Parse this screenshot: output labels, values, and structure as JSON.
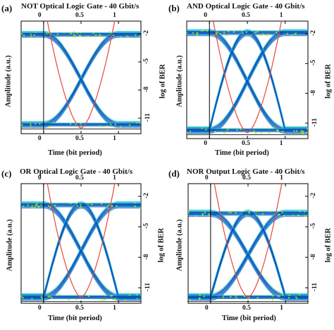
{
  "chart_data": [
    {
      "type": "line",
      "label": "(a)",
      "title": "NOT Optical Logic Gate - 40 Gbit/s",
      "xlabel": "Time (bit period)",
      "ylabel": "Amplitude (a.u.)",
      "y2label": "log of BER",
      "x_ticks": [
        "0",
        "0.5",
        "1"
      ],
      "y2_ticks": [
        "-2",
        "-5",
        "-8",
        "-11"
      ],
      "xlim": [
        -0.3,
        1.3
      ],
      "eye": {
        "high": 0.88,
        "low": 0.08,
        "cross": 0.4
      },
      "colors": {
        "trace": "#0b3fb8",
        "noise": "#22c7d0",
        "hot": "#b8f000",
        "ber": "#e8463c"
      }
    },
    {
      "type": "line",
      "label": "(b)",
      "title": "AND Optical Logic Gate - 40 Gbit/s",
      "xlabel": "Time (bit period)",
      "ylabel": "Amplitude (a.u.)",
      "y2label": "log of BER",
      "x_ticks": [
        "0",
        "0.5",
        "1"
      ],
      "y2_ticks": [
        "-2",
        "-5",
        "-8",
        "-11"
      ],
      "xlim": [
        -0.3,
        1.3
      ],
      "eye": {
        "high": 0.9,
        "low": 0.07,
        "cross": 0.2
      },
      "colors": {
        "trace": "#0b3fb8",
        "noise": "#22c7d0",
        "hot": "#b8f000",
        "ber": "#e8463c"
      }
    },
    {
      "type": "line",
      "label": "(c)",
      "title": "OR Optical Logic Gate - 40 Gbit/s",
      "xlabel": "Time (bit period)",
      "ylabel": "Amplitude (a.u.)",
      "y2label": "log of BER",
      "x_ticks": [
        "0",
        "0.5",
        "1"
      ],
      "y2_ticks": [
        "-2",
        "-5",
        "-8",
        "-11"
      ],
      "xlim": [
        -0.3,
        1.3
      ],
      "eye": {
        "high": 0.82,
        "low": 0.05,
        "cross": 0.28
      },
      "colors": {
        "trace": "#0b3fb8",
        "noise": "#22c7d0",
        "hot": "#b8f000",
        "ber": "#e8463c"
      }
    },
    {
      "type": "line",
      "label": "(d)",
      "title": "NOR Output Logic Gate - 40 Gbit/s",
      "xlabel": "Time (bit period)",
      "ylabel": "Amplitude (a.u.)",
      "y2label": "log of BER",
      "x_ticks": [
        "0",
        "0.5",
        "1"
      ],
      "y2_ticks": [
        "-2",
        "-5",
        "-8",
        "-11"
      ],
      "xlim": [
        -0.3,
        1.3
      ],
      "eye": {
        "high": 0.75,
        "low": 0.05,
        "cross": 0.25
      },
      "colors": {
        "trace": "#0b3fb8",
        "noise": "#22c7d0",
        "hot": "#b8f000",
        "ber": "#e8463c"
      }
    }
  ]
}
